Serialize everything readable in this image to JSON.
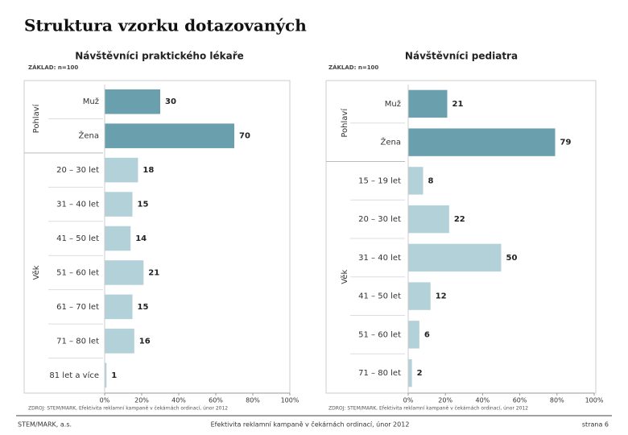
{
  "title": "Struktura vzorku dotazovaných",
  "chart_data": [
    {
      "type": "bar",
      "title": "Návštěvníci praktického lékaře",
      "subtitle": "ZÁKLAD: n=100",
      "groups": [
        {
          "name": "Pohlaví",
          "color": "#6a9fae",
          "categories": [
            "Muž",
            "Žena"
          ],
          "values": [
            30,
            70
          ]
        },
        {
          "name": "Věk",
          "color": "#b3d1d9",
          "categories": [
            "20 – 30 let",
            "31 – 40 let",
            "41 – 50 let",
            "51 – 60 let",
            "61 – 70 let",
            "71 – 80 let",
            "81 let a více"
          ],
          "values": [
            18,
            15,
            14,
            21,
            15,
            16,
            1
          ]
        }
      ],
      "xlim": [
        0,
        100
      ],
      "xticks": [
        {
          "value": 0,
          "label": "0%"
        },
        {
          "value": 20,
          "label": "20%"
        },
        {
          "value": 40,
          "label": "40%"
        },
        {
          "value": 60,
          "label": "60%"
        },
        {
          "value": 80,
          "label": "80%"
        },
        {
          "value": 100,
          "label": "100%"
        }
      ],
      "source": "ZDROJ: STEM/MARK, Efektivita reklamní kampaně v čekárnách ordinací, únor 2012"
    },
    {
      "type": "bar",
      "title": "Návštěvníci pediatra",
      "subtitle": "ZÁKLAD: n=100",
      "groups": [
        {
          "name": "Pohlaví",
          "color": "#6a9fae",
          "categories": [
            "Muž",
            "Žena"
          ],
          "values": [
            21,
            79
          ]
        },
        {
          "name": "Věk",
          "color": "#b3d1d9",
          "categories": [
            "15 – 19 let",
            "20 – 30 let",
            "31 – 40 let",
            "41 – 50 let",
            "51 – 60 let",
            "71 – 80 let"
          ],
          "values": [
            8,
            22,
            50,
            12,
            6,
            2
          ]
        }
      ],
      "xlim": [
        0,
        100
      ],
      "xticks": [
        {
          "value": 0,
          "label": "0%"
        },
        {
          "value": 20,
          "label": "20%"
        },
        {
          "value": 40,
          "label": "40%"
        },
        {
          "value": 60,
          "label": "60%"
        },
        {
          "value": 80,
          "label": "80%"
        },
        {
          "value": 100,
          "label": "100%"
        }
      ],
      "source": "ZDROJ: STEM/MARK, Efektivita reklamní kampaně v čekárnách ordinací, únor 2012"
    }
  ],
  "footer": {
    "left": "STEM/MARK, a.s.",
    "center": "Efektivita reklamní kampaně v čekárnách ordinací, únor 2012",
    "right": "strana 6"
  }
}
